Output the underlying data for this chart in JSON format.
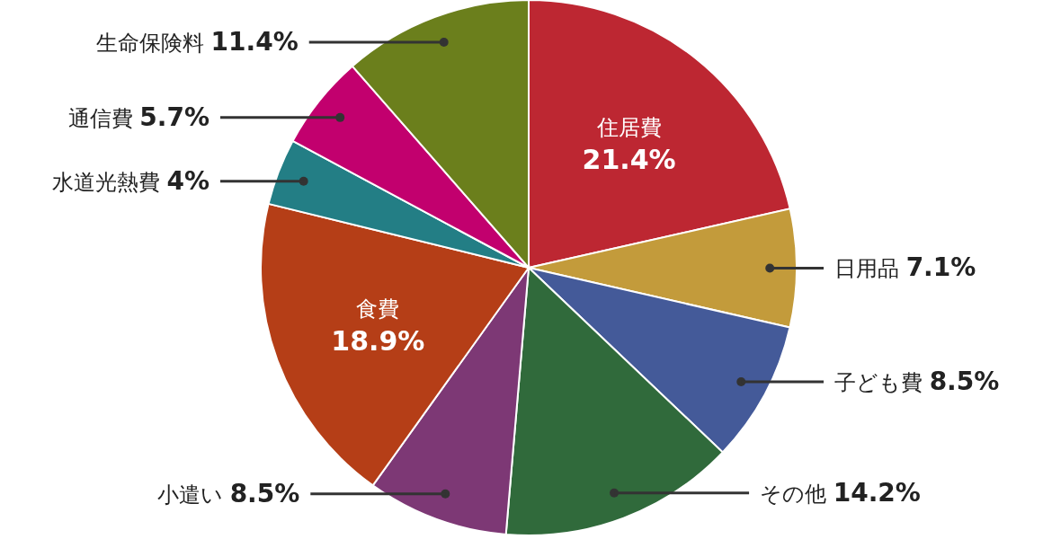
{
  "chart_data": {
    "type": "pie",
    "categories": [
      "住居費",
      "日用品",
      "子ども費",
      "その他",
      "小遣い",
      "食費",
      "水道光熱費",
      "通信費",
      "生命保険料"
    ],
    "values": [
      21.4,
      7.1,
      8.5,
      14.2,
      8.5,
      18.9,
      4,
      5.7,
      11.4
    ],
    "colors": [
      "#bd2732",
      "#c39b3b",
      "#445a99",
      "#306a3b",
      "#7d3875",
      "#b53e17",
      "#237e85",
      "#c2006e",
      "#6b7f1c"
    ],
    "value_labels": [
      "21.4%",
      "7.1%",
      "8.5%",
      "14.2%",
      "8.5%",
      "18.9%",
      "4%",
      "5.7%",
      "11.4%"
    ],
    "legend": false
  }
}
